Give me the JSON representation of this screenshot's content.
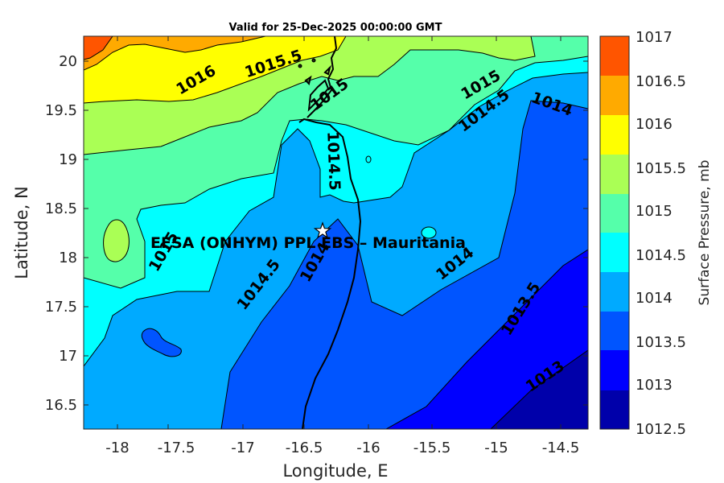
{
  "title": "Valid for 25-Dec-2025 00:00:00 GMT",
  "xlabel": "Longitude, E",
  "ylabel": "Latitude, N",
  "site_label": "EFSA (ONHYM) PPL EBS  – Mauritania",
  "site_marker": {
    "lon": -16.33,
    "lat": 18.28
  },
  "map_extent": {
    "lon": [
      -18.25,
      -14.25
    ],
    "lat": [
      16.25,
      20.25
    ]
  },
  "x_ticks": [
    "-18",
    "-17.5",
    "-17",
    "-16.5",
    "-16",
    "-15.5",
    "-15",
    "-14.5"
  ],
  "y_ticks": [
    "20",
    "19.5",
    "19",
    "18.5",
    "18",
    "17.5",
    "17",
    "16.5"
  ],
  "colorbar": {
    "label": "Surface Pressure, mb",
    "levels": [
      "1017",
      "1016.5",
      "1016",
      "1015.5",
      "1015",
      "1014.5",
      "1014",
      "1013.5",
      "1013",
      "1012.5"
    ],
    "colors": [
      "#FF5500",
      "#FFAA00",
      "#FFFF00",
      "#AAFF55",
      "#55FFAA",
      "#00FFFF",
      "#00AAFF",
      "#0055FF",
      "#0000FF",
      "#0000AA"
    ]
  },
  "contour_labels": [
    {
      "text": "1016",
      "lon": -17.67,
      "lat": 19.82
    },
    {
      "text": "1015.5",
      "lon": -17.02,
      "lat": 19.91
    },
    {
      "text": "1015",
      "lon": -16.32,
      "lat": 19.63
    },
    {
      "text": "1015",
      "lon": -15.1,
      "lat": 19.73
    },
    {
      "text": "1014.5",
      "lon": -15.14,
      "lat": 19.48
    },
    {
      "text": "1014",
      "lon": -14.66,
      "lat": 19.56
    },
    {
      "text": "1014.5",
      "lon": -16.28,
      "lat": 18.94
    },
    {
      "text": "1015",
      "lon": -17.77,
      "lat": 18.06
    },
    {
      "text": "1014.5",
      "lon": -16.95,
      "lat": 17.67
    },
    {
      "text": "1014",
      "lon": -16.42,
      "lat": 18.0
    },
    {
      "text": "1014",
      "lon": -15.22,
      "lat": 17.98
    },
    {
      "text": "1013.5",
      "lon": -14.88,
      "lat": 17.48
    },
    {
      "text": "1013",
      "lon": -14.75,
      "lat": 16.81
    }
  ]
}
